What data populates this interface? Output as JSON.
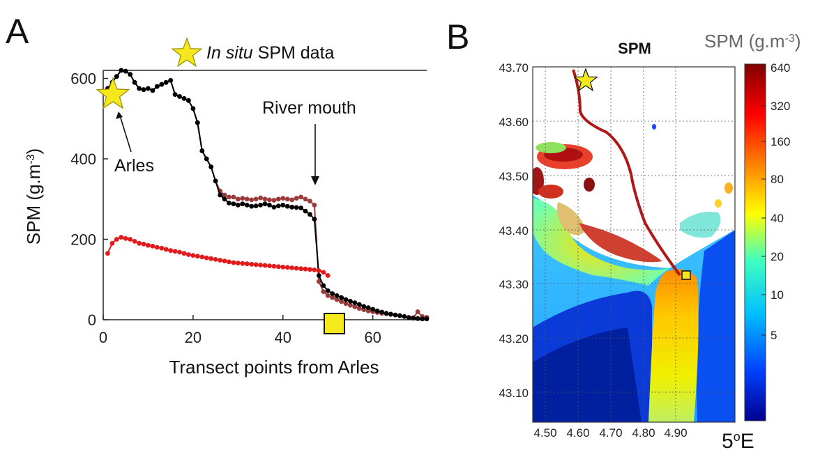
{
  "panelA": {
    "letter": "A",
    "legend_marker_text_italic": "In situ",
    "legend_marker_text_rest": " SPM data",
    "annotation_arles": "Arles",
    "annotation_river_mouth": "River mouth"
  },
  "panelB": {
    "letter": "B",
    "map_title": "SPM",
    "colorbar_title": "SPM (g.m",
    "colorbar_title_exp": "-3",
    "colorbar_title_close": ")",
    "colorbar_ticks": [
      "640",
      "320",
      "160",
      "80",
      "40",
      "20",
      "10",
      "5"
    ],
    "lat_ticks": [
      "43.70",
      "43.60",
      "43.50",
      "43.40",
      "43.30",
      "43.20",
      "43.10"
    ],
    "lon_ticks": [
      "4.50",
      "4.60",
      "4.70",
      "4.80",
      "4.90"
    ],
    "lon_unit": "5",
    "lon_unit_sup": "o",
    "lon_unit_dir": "E",
    "colormap": [
      "#00008f",
      "#0040ff",
      "#00bfff",
      "#40ffbf",
      "#ffff00",
      "#ff8000",
      "#ff0000",
      "#800000"
    ]
  },
  "chart_data": {
    "type": "line",
    "xlabel": "Transect points from Arles",
    "ylabel": "SPM (g.m",
    "ylabel_exp": "-3",
    "ylabel_close": ")",
    "xlim": [
      0,
      72
    ],
    "ylim": [
      0,
      620
    ],
    "xticks": [
      "0",
      "20",
      "40",
      "60"
    ],
    "yticks": [
      "0",
      "200",
      "400",
      "600"
    ],
    "series": [
      {
        "color": "#000000",
        "x": [
          1,
          2,
          3,
          4,
          5,
          6,
          7,
          8,
          9,
          10,
          11,
          12,
          13,
          14,
          15,
          16,
          17,
          18,
          19,
          20,
          21,
          22,
          23,
          24,
          25,
          26,
          27,
          28,
          29,
          30,
          31,
          32,
          33,
          34,
          35,
          36,
          37,
          38,
          39,
          40,
          41,
          42,
          43,
          44,
          45,
          46,
          47,
          48,
          49,
          50,
          51,
          52,
          53,
          54,
          55,
          56,
          57,
          58,
          59,
          60,
          61,
          62,
          63,
          64,
          65,
          66,
          67,
          68,
          69,
          70,
          71,
          72
        ],
        "values": [
          575,
          590,
          605,
          620,
          618,
          610,
          590,
          575,
          572,
          575,
          570,
          580,
          585,
          590,
          595,
          560,
          555,
          550,
          545,
          525,
          490,
          420,
          400,
          380,
          345,
          310,
          300,
          290,
          288,
          285,
          288,
          285,
          282,
          283,
          285,
          288,
          285,
          280,
          283,
          285,
          282,
          280,
          279,
          278,
          270,
          262,
          250,
          110,
          85,
          72,
          65,
          60,
          55,
          50,
          46,
          42,
          38,
          33,
          30,
          26,
          22,
          19,
          16,
          14,
          12,
          10,
          8,
          5,
          4,
          3,
          2,
          2
        ]
      },
      {
        "color": "#9b3a3a",
        "x": [
          1,
          2,
          3,
          4,
          5,
          6,
          7,
          8,
          9,
          10,
          11,
          12,
          13,
          14,
          15,
          16,
          17,
          18,
          19,
          20,
          21,
          22,
          23,
          24,
          25,
          26,
          27,
          28,
          29,
          30,
          31,
          32,
          33,
          34,
          35,
          36,
          37,
          38,
          39,
          40,
          41,
          42,
          43,
          44,
          45,
          46,
          47,
          48,
          49,
          50,
          51,
          52,
          53,
          54,
          55,
          56,
          57,
          58,
          59,
          60,
          61,
          62,
          63,
          64,
          65,
          66,
          67,
          68,
          69,
          70,
          71,
          72
        ],
        "values": [
          575,
          590,
          605,
          620,
          618,
          610,
          590,
          575,
          572,
          575,
          570,
          580,
          585,
          590,
          595,
          560,
          555,
          550,
          545,
          525,
          490,
          420,
          400,
          380,
          345,
          320,
          310,
          305,
          305,
          300,
          302,
          300,
          298,
          300,
          303,
          300,
          298,
          297,
          300,
          302,
          300,
          298,
          302,
          305,
          300,
          295,
          285,
          95,
          70,
          60,
          55,
          50,
          45,
          40,
          36,
          32,
          28,
          25,
          22,
          20,
          18,
          16,
          15,
          13,
          12,
          10,
          8,
          6,
          5,
          20,
          8,
          6
        ]
      },
      {
        "color": "#e31a1c",
        "x": [
          1,
          2,
          3,
          4,
          5,
          6,
          7,
          8,
          9,
          10,
          11,
          12,
          13,
          14,
          15,
          16,
          17,
          18,
          19,
          20,
          21,
          22,
          23,
          24,
          25,
          26,
          27,
          28,
          29,
          30,
          31,
          32,
          33,
          34,
          35,
          36,
          37,
          38,
          39,
          40,
          41,
          42,
          43,
          44,
          45,
          46,
          47,
          48,
          49,
          50
        ],
        "values": [
          165,
          190,
          200,
          205,
          202,
          200,
          195,
          190,
          188,
          185,
          183,
          180,
          178,
          175,
          172,
          170,
          168,
          165,
          162,
          160,
          158,
          156,
          154,
          152,
          150,
          148,
          146,
          144,
          142,
          141,
          140,
          139,
          138,
          137,
          136,
          135,
          134,
          133,
          132,
          131,
          130,
          129,
          128,
          127,
          126,
          125,
          124,
          122,
          118,
          110
        ]
      }
    ]
  }
}
